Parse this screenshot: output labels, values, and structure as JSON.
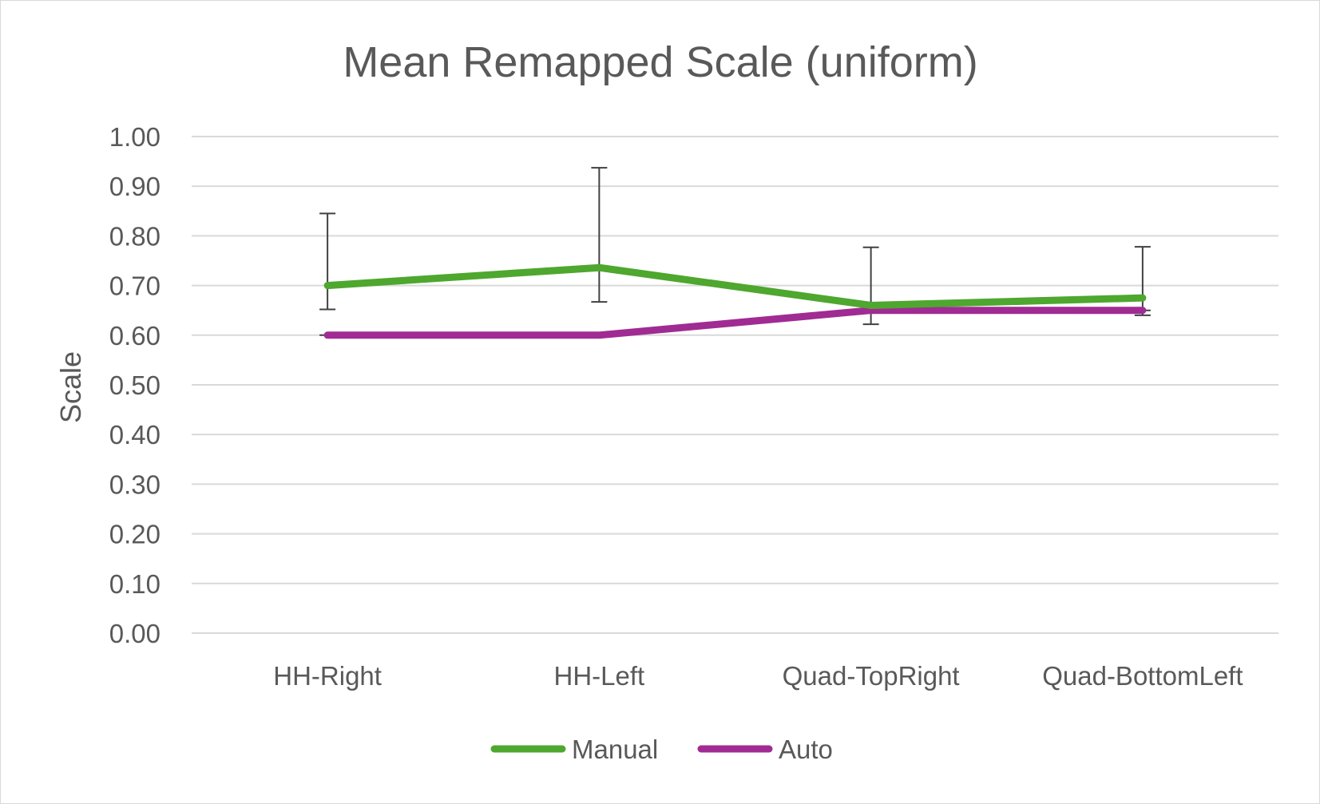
{
  "chart_data": {
    "type": "line",
    "title": "Mean Remapped Scale (uniform)",
    "xlabel": "",
    "ylabel": "Scale",
    "categories": [
      "HH-Right",
      "HH-Left",
      "Quad-TopRight",
      "Quad-BottomLeft"
    ],
    "yticks": [
      "0.00",
      "0.10",
      "0.20",
      "0.30",
      "0.40",
      "0.50",
      "0.60",
      "0.70",
      "0.80",
      "0.90",
      "1.00"
    ],
    "ylim": [
      0,
      1
    ],
    "grid": true,
    "legend_position": "bottom",
    "series": [
      {
        "name": "Manual",
        "color": "#4ea72e",
        "values": [
          0.7,
          0.736,
          0.66,
          0.675
        ],
        "error_low": [
          0.652,
          0.667,
          0.622,
          0.64
        ],
        "error_high": [
          0.845,
          0.937,
          0.777,
          0.778
        ]
      },
      {
        "name": "Auto",
        "color": "#a02b93",
        "values": [
          0.6,
          0.6,
          0.65,
          0.65
        ],
        "error_low": [
          0.6,
          0.6,
          0.65,
          0.65
        ],
        "error_high": [
          0.6,
          0.6,
          0.65,
          0.65
        ]
      }
    ]
  }
}
